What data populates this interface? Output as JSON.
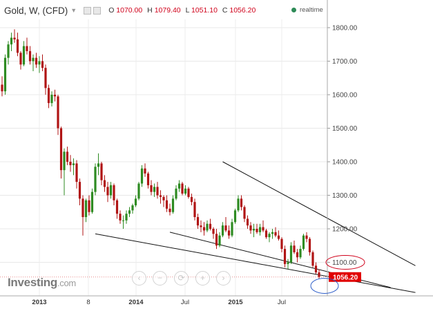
{
  "header": {
    "symbol": "Gold, W, (CFD)",
    "ohlc": [
      {
        "label": "O",
        "value": "1070.00"
      },
      {
        "label": "H",
        "value": "1079.40"
      },
      {
        "label": "L",
        "value": "1051.10"
      },
      {
        "label": "C",
        "value": "1056.20"
      }
    ],
    "realtime_label": "realtime"
  },
  "logo": {
    "main": "Investing",
    "suffix": ".com"
  },
  "zoom_controls": [
    "‹",
    "−",
    "⟳",
    "+",
    "›"
  ],
  "colors": {
    "up": "#2e8b22",
    "down": "#b01414",
    "price_tag": "#e10000",
    "ellipse_red": "#d0021b",
    "ellipse_blue": "#2f5fc9"
  },
  "chart_data": {
    "type": "candlestick",
    "title": "",
    "interval": "weekly",
    "ylim": [
      1000,
      1840
    ],
    "y_ticks": [
      "1800.00",
      "1700.00",
      "1600.00",
      "1500.00",
      "1400.00",
      "1300.00",
      "1200.00",
      "1100.00"
    ],
    "x_ticks": [
      "2013",
      "8",
      "2014",
      "Jul",
      "2015",
      "Jul"
    ],
    "last_price_label": "1056.20",
    "highlighted_level_label": "1100.00",
    "candles": [
      [
        0,
        1630,
        1655,
        1595,
        1610
      ],
      [
        1,
        1610,
        1720,
        1600,
        1710
      ],
      [
        2,
        1710,
        1760,
        1690,
        1750
      ],
      [
        3,
        1750,
        1785,
        1730,
        1770
      ],
      [
        4,
        1770,
        1795,
        1755,
        1765
      ],
      [
        5,
        1765,
        1785,
        1715,
        1725
      ],
      [
        6,
        1725,
        1730,
        1675,
        1690
      ],
      [
        7,
        1690,
        1760,
        1685,
        1745
      ],
      [
        8,
        1745,
        1770,
        1720,
        1730
      ],
      [
        9,
        1730,
        1745,
        1690,
        1700
      ],
      [
        10,
        1700,
        1720,
        1670,
        1710
      ],
      [
        11,
        1710,
        1725,
        1680,
        1690
      ],
      [
        12,
        1690,
        1715,
        1665,
        1700
      ],
      [
        13,
        1700,
        1720,
        1670,
        1680
      ],
      [
        14,
        1680,
        1690,
        1600,
        1620
      ],
      [
        15,
        1620,
        1630,
        1560,
        1575
      ],
      [
        16,
        1575,
        1610,
        1565,
        1600
      ],
      [
        17,
        1600,
        1615,
        1580,
        1595
      ],
      [
        18,
        1595,
        1600,
        1480,
        1500
      ],
      [
        19,
        1500,
        1505,
        1350,
        1375
      ],
      [
        20,
        1375,
        1440,
        1300,
        1430
      ],
      [
        21,
        1430,
        1445,
        1390,
        1400
      ],
      [
        22,
        1400,
        1420,
        1370,
        1390
      ],
      [
        23,
        1390,
        1410,
        1360,
        1395
      ],
      [
        24,
        1395,
        1405,
        1320,
        1340
      ],
      [
        25,
        1340,
        1350,
        1270,
        1290
      ],
      [
        26,
        1290,
        1300,
        1180,
        1235
      ],
      [
        27,
        1235,
        1290,
        1220,
        1285
      ],
      [
        28,
        1285,
        1300,
        1240,
        1250
      ],
      [
        29,
        1250,
        1320,
        1245,
        1310
      ],
      [
        30,
        1310,
        1395,
        1300,
        1385
      ],
      [
        31,
        1385,
        1425,
        1360,
        1395
      ],
      [
        32,
        1395,
        1400,
        1330,
        1345
      ],
      [
        33,
        1345,
        1360,
        1310,
        1325
      ],
      [
        34,
        1325,
        1340,
        1280,
        1300
      ],
      [
        35,
        1300,
        1340,
        1290,
        1330
      ],
      [
        36,
        1330,
        1335,
        1270,
        1285
      ],
      [
        37,
        1285,
        1290,
        1230,
        1245
      ],
      [
        38,
        1245,
        1255,
        1215,
        1225
      ],
      [
        39,
        1225,
        1240,
        1200,
        1225
      ],
      [
        40,
        1225,
        1255,
        1215,
        1245
      ],
      [
        41,
        1245,
        1265,
        1235,
        1255
      ],
      [
        42,
        1255,
        1275,
        1245,
        1270
      ],
      [
        43,
        1270,
        1300,
        1265,
        1290
      ],
      [
        44,
        1290,
        1340,
        1285,
        1335
      ],
      [
        45,
        1335,
        1390,
        1325,
        1380
      ],
      [
        46,
        1380,
        1395,
        1355,
        1365
      ],
      [
        47,
        1365,
        1370,
        1320,
        1330
      ],
      [
        48,
        1330,
        1345,
        1300,
        1310
      ],
      [
        49,
        1310,
        1335,
        1295,
        1325
      ],
      [
        50,
        1325,
        1340,
        1290,
        1300
      ],
      [
        51,
        1300,
        1315,
        1275,
        1295
      ],
      [
        52,
        1295,
        1300,
        1265,
        1285
      ],
      [
        53,
        1285,
        1300,
        1250,
        1260
      ],
      [
        54,
        1260,
        1275,
        1240,
        1250
      ],
      [
        55,
        1250,
        1300,
        1245,
        1290
      ],
      [
        56,
        1290,
        1330,
        1285,
        1320
      ],
      [
        57,
        1320,
        1345,
        1310,
        1335
      ],
      [
        58,
        1335,
        1340,
        1300,
        1305
      ],
      [
        59,
        1305,
        1330,
        1300,
        1320
      ],
      [
        60,
        1320,
        1325,
        1290,
        1295
      ],
      [
        61,
        1295,
        1305,
        1270,
        1280
      ],
      [
        62,
        1280,
        1290,
        1225,
        1235
      ],
      [
        63,
        1235,
        1245,
        1200,
        1210
      ],
      [
        64,
        1210,
        1225,
        1190,
        1205
      ],
      [
        65,
        1205,
        1220,
        1180,
        1195
      ],
      [
        66,
        1195,
        1225,
        1190,
        1215
      ],
      [
        67,
        1215,
        1230,
        1195,
        1200
      ],
      [
        68,
        1200,
        1205,
        1170,
        1185
      ],
      [
        69,
        1185,
        1200,
        1140,
        1150
      ],
      [
        70,
        1150,
        1190,
        1145,
        1180
      ],
      [
        71,
        1180,
        1220,
        1175,
        1210
      ],
      [
        72,
        1210,
        1235,
        1190,
        1195
      ],
      [
        73,
        1195,
        1210,
        1170,
        1180
      ],
      [
        74,
        1180,
        1230,
        1175,
        1220
      ],
      [
        75,
        1220,
        1260,
        1215,
        1255
      ],
      [
        76,
        1255,
        1300,
        1250,
        1290
      ],
      [
        77,
        1290,
        1300,
        1255,
        1265
      ],
      [
        78,
        1265,
        1270,
        1220,
        1230
      ],
      [
        79,
        1230,
        1240,
        1200,
        1210
      ],
      [
        80,
        1210,
        1220,
        1185,
        1195
      ],
      [
        81,
        1195,
        1215,
        1175,
        1200
      ],
      [
        82,
        1200,
        1215,
        1185,
        1190
      ],
      [
        83,
        1190,
        1215,
        1180,
        1205
      ],
      [
        84,
        1205,
        1225,
        1190,
        1195
      ],
      [
        85,
        1195,
        1200,
        1170,
        1175
      ],
      [
        86,
        1175,
        1190,
        1160,
        1185
      ],
      [
        87,
        1185,
        1200,
        1170,
        1190
      ],
      [
        88,
        1190,
        1205,
        1175,
        1180
      ],
      [
        89,
        1180,
        1195,
        1165,
        1170
      ],
      [
        90,
        1170,
        1175,
        1130,
        1140
      ],
      [
        91,
        1140,
        1150,
        1085,
        1095
      ],
      [
        92,
        1095,
        1110,
        1080,
        1100
      ],
      [
        93,
        1100,
        1160,
        1095,
        1150
      ],
      [
        94,
        1150,
        1165,
        1125,
        1130
      ],
      [
        95,
        1130,
        1140,
        1100,
        1115
      ],
      [
        96,
        1115,
        1150,
        1110,
        1140
      ],
      [
        97,
        1140,
        1185,
        1135,
        1180
      ],
      [
        98,
        1180,
        1190,
        1160,
        1170
      ],
      [
        99,
        1170,
        1175,
        1120,
        1130
      ],
      [
        100,
        1130,
        1135,
        1085,
        1090
      ],
      [
        101,
        1090,
        1100,
        1065,
        1070
      ],
      [
        102,
        1070,
        1079.4,
        1051.1,
        1056.2
      ]
    ],
    "trendlines": [
      {
        "from": [
          71,
          1400
        ],
        "to": [
          133,
          1090
        ]
      },
      {
        "from": [
          30,
          1185
        ],
        "to": [
          133,
          1010
        ]
      },
      {
        "from": [
          54,
          1190
        ],
        "to": [
          125,
          1025
        ]
      }
    ]
  }
}
